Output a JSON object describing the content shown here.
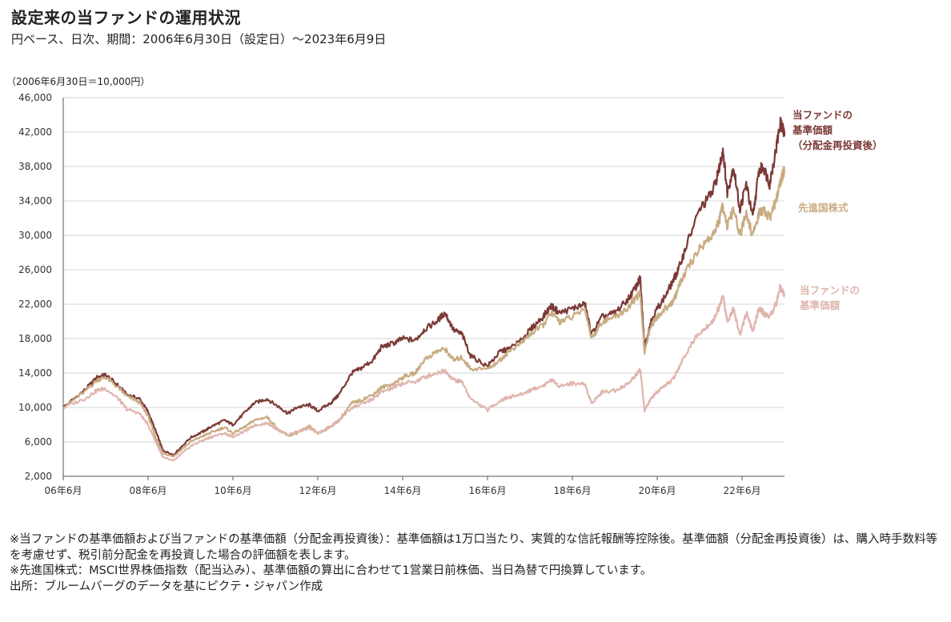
{
  "title": "設定来の当ファンドの運用状況",
  "subtitle": "円ベース、日次、期間：2006年6月30日（設定日）～2023年6月9日",
  "unit_note": "（2006年6月30日＝10,000円）",
  "colors": {
    "reinvested": "#7b3a36",
    "msci": "#c9ac82",
    "nav": "#e0b5ad",
    "grid": "#d4d4d4",
    "axis": "#555555"
  },
  "labels": {
    "reinvested": [
      "当ファンドの",
      "基準価額",
      "（分配金再投資後）"
    ],
    "msci": [
      "先進国株式"
    ],
    "nav": [
      "当ファンドの",
      "基準価額"
    ]
  },
  "notes": [
    "※当ファンドの基準価額および当ファンドの基準価額（分配金再投資後）：基準価額は1万口当たり、実質的な信託報酬等控除後。基準価額（分配金再投資後）は、購入時手数料等を考慮せず、税引前分配金を再投資した場合の評価額を表します。",
    "※先進国株式：MSCI世界株価指数（配当込み）、基準価額の算出に合わせて1営業日前株価、当日為替で円換算しています。",
    "出所：ブルームバーグのデータを基にピクテ・ジャパン作成"
  ],
  "chart_data": {
    "type": "line",
    "ylim": [
      2000,
      46000
    ],
    "yticks": [
      "2,000",
      "6,000",
      "10,000",
      "14,000",
      "18,000",
      "22,000",
      "26,000",
      "30,000",
      "34,000",
      "38,000",
      "42,000",
      "46,000"
    ],
    "xlim": [
      2006.5,
      2023.5
    ],
    "xticks": [
      {
        "x": 2006.5,
        "label": "06年6月"
      },
      {
        "x": 2008.5,
        "label": "08年6月"
      },
      {
        "x": 2010.5,
        "label": "10年6月"
      },
      {
        "x": 2012.5,
        "label": "12年6月"
      },
      {
        "x": 2014.5,
        "label": "14年6月"
      },
      {
        "x": 2016.5,
        "label": "16年6月"
      },
      {
        "x": 2018.5,
        "label": "18年6月"
      },
      {
        "x": 2020.5,
        "label": "20年6月"
      },
      {
        "x": 2022.5,
        "label": "22年6月"
      }
    ],
    "grid": true,
    "series": [
      {
        "key": "reinvested",
        "name": "当ファンドの基準価額（分配金再投資後）",
        "points": [
          [
            2006.5,
            10000
          ],
          [
            2007.0,
            12000
          ],
          [
            2007.3,
            13500
          ],
          [
            2007.5,
            13800
          ],
          [
            2007.8,
            12500
          ],
          [
            2008.0,
            11500
          ],
          [
            2008.3,
            11000
          ],
          [
            2008.5,
            9500
          ],
          [
            2008.7,
            7000
          ],
          [
            2008.85,
            5000
          ],
          [
            2009.1,
            4500
          ],
          [
            2009.5,
            6500
          ],
          [
            2009.8,
            7200
          ],
          [
            2010.0,
            7800
          ],
          [
            2010.3,
            8500
          ],
          [
            2010.5,
            8000
          ],
          [
            2010.8,
            9500
          ],
          [
            2011.0,
            10500
          ],
          [
            2011.3,
            11000
          ],
          [
            2011.6,
            10000
          ],
          [
            2011.8,
            9300
          ],
          [
            2012.0,
            10000
          ],
          [
            2012.3,
            10300
          ],
          [
            2012.5,
            9600
          ],
          [
            2012.8,
            10500
          ],
          [
            2013.0,
            11500
          ],
          [
            2013.3,
            14000
          ],
          [
            2013.5,
            14500
          ],
          [
            2013.8,
            15500
          ],
          [
            2014.0,
            17000
          ],
          [
            2014.3,
            17500
          ],
          [
            2014.5,
            18000
          ],
          [
            2014.8,
            17800
          ],
          [
            2015.0,
            19000
          ],
          [
            2015.3,
            20000
          ],
          [
            2015.5,
            21000
          ],
          [
            2015.7,
            19000
          ],
          [
            2015.9,
            18500
          ],
          [
            2016.1,
            16000
          ],
          [
            2016.5,
            14800
          ],
          [
            2016.8,
            16500
          ],
          [
            2017.0,
            16800
          ],
          [
            2017.3,
            17800
          ],
          [
            2017.5,
            19000
          ],
          [
            2017.8,
            20500
          ],
          [
            2018.0,
            21800
          ],
          [
            2018.2,
            21000
          ],
          [
            2018.5,
            21500
          ],
          [
            2018.8,
            22000
          ],
          [
            2018.95,
            18500
          ],
          [
            2019.2,
            20500
          ],
          [
            2019.5,
            21000
          ],
          [
            2019.8,
            22500
          ],
          [
            2020.0,
            24000
          ],
          [
            2020.1,
            25000
          ],
          [
            2020.2,
            17000
          ],
          [
            2020.35,
            20000
          ],
          [
            2020.5,
            21500
          ],
          [
            2020.7,
            23000
          ],
          [
            2020.9,
            25000
          ],
          [
            2021.0,
            26000
          ],
          [
            2021.2,
            29000
          ],
          [
            2021.5,
            33000
          ],
          [
            2021.8,
            35000
          ],
          [
            2021.95,
            37500
          ],
          [
            2022.05,
            40000
          ],
          [
            2022.15,
            35000
          ],
          [
            2022.3,
            38000
          ],
          [
            2022.45,
            33000
          ],
          [
            2022.6,
            36000
          ],
          [
            2022.75,
            32000
          ],
          [
            2022.9,
            37500
          ],
          [
            2023.0,
            38000
          ],
          [
            2023.15,
            36000
          ],
          [
            2023.3,
            40000
          ],
          [
            2023.4,
            43000
          ],
          [
            2023.45,
            42500
          ],
          [
            2023.5,
            41500
          ]
        ]
      },
      {
        "key": "msci",
        "name": "先進国株式",
        "points": [
          [
            2006.5,
            10000
          ],
          [
            2007.0,
            11800
          ],
          [
            2007.3,
            13200
          ],
          [
            2007.5,
            13500
          ],
          [
            2007.8,
            12300
          ],
          [
            2008.0,
            11300
          ],
          [
            2008.3,
            10600
          ],
          [
            2008.5,
            9000
          ],
          [
            2008.7,
            6200
          ],
          [
            2008.85,
            4700
          ],
          [
            2009.1,
            4300
          ],
          [
            2009.5,
            6000
          ],
          [
            2009.8,
            6700
          ],
          [
            2010.0,
            7100
          ],
          [
            2010.3,
            7700
          ],
          [
            2010.5,
            7000
          ],
          [
            2010.8,
            7800
          ],
          [
            2011.0,
            8500
          ],
          [
            2011.3,
            8900
          ],
          [
            2011.6,
            7300
          ],
          [
            2011.8,
            6700
          ],
          [
            2012.0,
            7000
          ],
          [
            2012.3,
            7800
          ],
          [
            2012.5,
            7000
          ],
          [
            2012.8,
            7800
          ],
          [
            2013.0,
            8500
          ],
          [
            2013.3,
            10500
          ],
          [
            2013.5,
            10800
          ],
          [
            2013.8,
            11500
          ],
          [
            2014.0,
            12300
          ],
          [
            2014.3,
            12800
          ],
          [
            2014.5,
            13500
          ],
          [
            2014.8,
            14000
          ],
          [
            2015.0,
            15500
          ],
          [
            2015.3,
            16500
          ],
          [
            2015.5,
            16800
          ],
          [
            2015.7,
            15500
          ],
          [
            2015.9,
            15800
          ],
          [
            2016.1,
            14500
          ],
          [
            2016.5,
            14500
          ],
          [
            2016.8,
            15500
          ],
          [
            2017.0,
            16500
          ],
          [
            2017.3,
            17500
          ],
          [
            2017.5,
            18500
          ],
          [
            2017.8,
            19500
          ],
          [
            2018.0,
            21000
          ],
          [
            2018.2,
            20000
          ],
          [
            2018.5,
            20500
          ],
          [
            2018.8,
            21500
          ],
          [
            2018.95,
            18000
          ],
          [
            2019.2,
            20000
          ],
          [
            2019.5,
            20500
          ],
          [
            2019.8,
            21500
          ],
          [
            2020.0,
            22800
          ],
          [
            2020.1,
            23200
          ],
          [
            2020.2,
            16500
          ],
          [
            2020.35,
            19500
          ],
          [
            2020.5,
            20500
          ],
          [
            2020.7,
            21500
          ],
          [
            2020.9,
            22500
          ],
          [
            2021.0,
            24000
          ],
          [
            2021.2,
            26000
          ],
          [
            2021.5,
            28500
          ],
          [
            2021.8,
            30000
          ],
          [
            2021.95,
            31500
          ],
          [
            2022.05,
            33500
          ],
          [
            2022.15,
            31000
          ],
          [
            2022.3,
            33000
          ],
          [
            2022.45,
            30000
          ],
          [
            2022.6,
            32500
          ],
          [
            2022.75,
            30000
          ],
          [
            2022.9,
            32500
          ],
          [
            2023.0,
            33000
          ],
          [
            2023.15,
            32000
          ],
          [
            2023.3,
            34000
          ],
          [
            2023.4,
            36000
          ],
          [
            2023.45,
            37000
          ],
          [
            2023.5,
            37500
          ]
        ]
      },
      {
        "key": "nav",
        "name": "当ファンドの基準価額",
        "points": [
          [
            2006.5,
            10000
          ],
          [
            2007.0,
            11000
          ],
          [
            2007.3,
            12000
          ],
          [
            2007.5,
            12200
          ],
          [
            2007.8,
            11000
          ],
          [
            2008.0,
            9800
          ],
          [
            2008.3,
            9300
          ],
          [
            2008.5,
            8000
          ],
          [
            2008.7,
            5800
          ],
          [
            2008.85,
            4200
          ],
          [
            2009.1,
            3800
          ],
          [
            2009.5,
            5500
          ],
          [
            2009.8,
            6200
          ],
          [
            2010.0,
            6600
          ],
          [
            2010.3,
            7000
          ],
          [
            2010.5,
            6600
          ],
          [
            2010.8,
            7300
          ],
          [
            2011.0,
            7900
          ],
          [
            2011.3,
            8200
          ],
          [
            2011.6,
            7300
          ],
          [
            2011.8,
            6800
          ],
          [
            2012.0,
            7200
          ],
          [
            2012.3,
            7600
          ],
          [
            2012.5,
            7000
          ],
          [
            2012.8,
            7700
          ],
          [
            2013.0,
            8500
          ],
          [
            2013.3,
            10000
          ],
          [
            2013.5,
            10300
          ],
          [
            2013.8,
            11000
          ],
          [
            2014.0,
            11800
          ],
          [
            2014.3,
            12300
          ],
          [
            2014.5,
            12800
          ],
          [
            2014.8,
            13000
          ],
          [
            2015.0,
            13500
          ],
          [
            2015.3,
            14000
          ],
          [
            2015.5,
            14300
          ],
          [
            2015.7,
            13200
          ],
          [
            2015.9,
            13000
          ],
          [
            2016.1,
            11000
          ],
          [
            2016.5,
            9700
          ],
          [
            2016.8,
            10800
          ],
          [
            2017.0,
            11200
          ],
          [
            2017.3,
            11500
          ],
          [
            2017.5,
            12000
          ],
          [
            2017.8,
            12500
          ],
          [
            2018.0,
            13200
          ],
          [
            2018.2,
            12500
          ],
          [
            2018.5,
            12800
          ],
          [
            2018.8,
            12700
          ],
          [
            2018.95,
            10500
          ],
          [
            2019.2,
            11800
          ],
          [
            2019.5,
            12000
          ],
          [
            2019.8,
            12700
          ],
          [
            2020.0,
            13800
          ],
          [
            2020.1,
            14500
          ],
          [
            2020.2,
            9600
          ],
          [
            2020.35,
            11000
          ],
          [
            2020.5,
            11800
          ],
          [
            2020.7,
            12500
          ],
          [
            2020.9,
            13500
          ],
          [
            2021.0,
            14500
          ],
          [
            2021.2,
            16500
          ],
          [
            2021.5,
            18800
          ],
          [
            2021.8,
            20000
          ],
          [
            2021.95,
            21500
          ],
          [
            2022.05,
            23000
          ],
          [
            2022.15,
            20000
          ],
          [
            2022.3,
            21500
          ],
          [
            2022.45,
            18500
          ],
          [
            2022.6,
            21000
          ],
          [
            2022.75,
            18800
          ],
          [
            2022.9,
            21500
          ],
          [
            2023.0,
            21000
          ],
          [
            2023.15,
            20500
          ],
          [
            2023.3,
            22000
          ],
          [
            2023.4,
            24000
          ],
          [
            2023.45,
            23500
          ],
          [
            2023.5,
            23000
          ]
        ]
      }
    ]
  }
}
